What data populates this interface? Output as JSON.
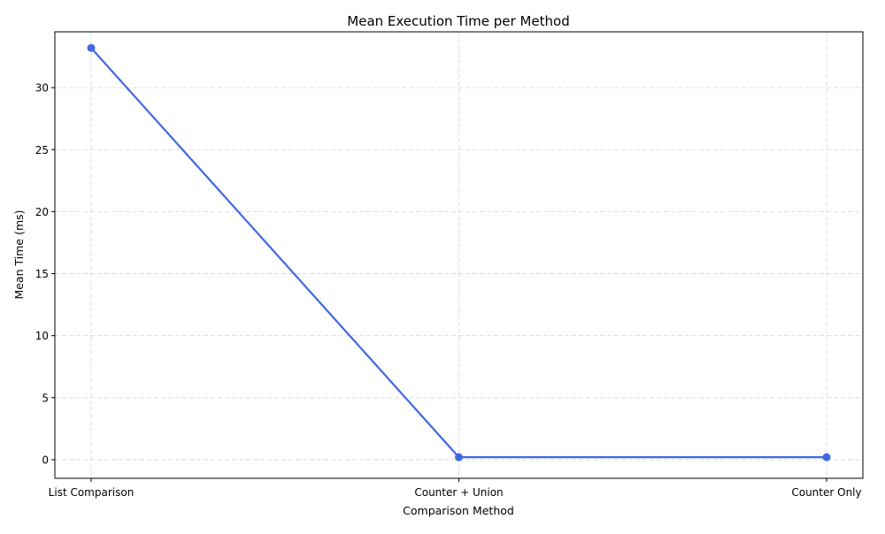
{
  "chart_data": {
    "type": "line",
    "title": "Mean Execution Time per Method",
    "xlabel": "Comparison Method",
    "ylabel": "Mean Time (ms)",
    "categories": [
      "List Comparison",
      "Counter + Union",
      "Counter Only"
    ],
    "series": [
      {
        "values": [
          33.2,
          0.2,
          0.2
        ],
        "color": "#4169e1",
        "marker": "circle"
      }
    ],
    "ylim": [
      -1.5,
      34.5
    ],
    "yticks": [
      0,
      5,
      10,
      15,
      20,
      25,
      30
    ],
    "grid": true
  }
}
